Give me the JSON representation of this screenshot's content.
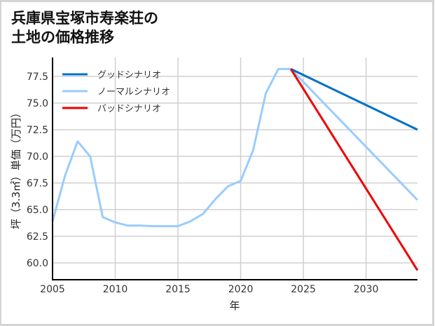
{
  "title": {
    "line1": "兵庫県宝塚市寿楽荘の",
    "line2": "土地の価格推移"
  },
  "chart_data": {
    "type": "line",
    "title": "兵庫県宝塚市寿楽荘の土地の価格推移",
    "xlabel": "年",
    "ylabel": "坪（3.3㎡）単価（万円）",
    "xlim": [
      2005,
      2034.1
    ],
    "ylim": [
      58.3,
      79.5
    ],
    "grid": true,
    "legend_position": "upper left",
    "x_ticks": [
      "2005",
      "2010",
      "2015",
      "2020",
      "2025",
      "2030"
    ],
    "y_ticks": [
      "60.0",
      "62.5",
      "65.0",
      "67.5",
      "70.0",
      "72.5",
      "75.0",
      "77.5"
    ],
    "series": [
      {
        "name": "ノーマルシナリオ (実績)",
        "color": "#99ccff",
        "x": [
          2005,
          2006,
          2007,
          2008,
          2009,
          2010,
          2011,
          2012,
          2013,
          2014,
          2015,
          2016,
          2017,
          2018,
          2019,
          2020,
          2021,
          2022,
          2023,
          2024
        ],
        "values": [
          63.9,
          68.2,
          71.4,
          70.0,
          64.3,
          63.8,
          63.5,
          63.5,
          63.45,
          63.45,
          63.45,
          63.9,
          64.6,
          66.0,
          67.2,
          67.7,
          70.6,
          75.9,
          78.2,
          78.2
        ]
      },
      {
        "name": "グッドシナリオ",
        "color": "#0070c8",
        "x": [
          2024,
          2034.1
        ],
        "values": [
          78.2,
          72.5
        ]
      },
      {
        "name": "ノーマルシナリオ",
        "color": "#99ccff",
        "x": [
          2024,
          2034.1
        ],
        "values": [
          78.2,
          65.9
        ]
      },
      {
        "name": "バッドシナリオ",
        "color": "#ee0000",
        "x": [
          2024,
          2034.1
        ],
        "values": [
          78.2,
          59.3
        ]
      }
    ],
    "legend": [
      {
        "label": "グッドシナリオ",
        "color": "#0070c8"
      },
      {
        "label": "ノーマルシナリオ",
        "color": "#99ccff"
      },
      {
        "label": "バッドシナリオ",
        "color": "#ee0000"
      }
    ]
  }
}
